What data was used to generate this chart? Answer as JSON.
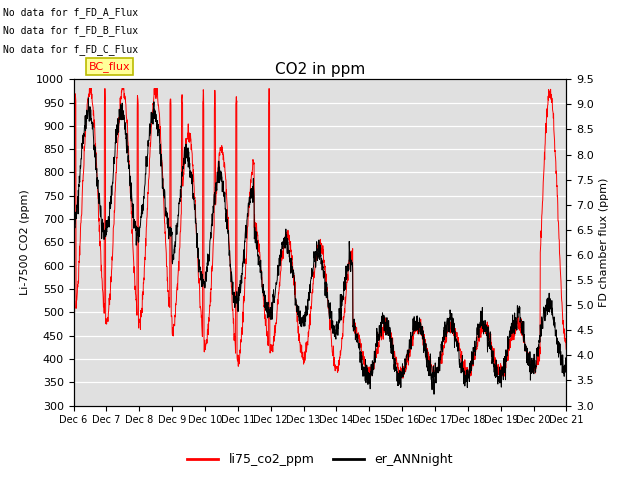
{
  "title": "CO2 in ppm",
  "ylabel_left": "Li-7500 CO2 (ppm)",
  "ylabel_right": "FD chamber flux (ppm)",
  "ylim_left": [
    300,
    1000
  ],
  "ylim_right": [
    3.0,
    9.5
  ],
  "yticks_left": [
    300,
    350,
    400,
    450,
    500,
    550,
    600,
    650,
    700,
    750,
    800,
    850,
    900,
    950,
    1000
  ],
  "yticks_right": [
    3.0,
    3.5,
    4.0,
    4.5,
    5.0,
    5.5,
    6.0,
    6.5,
    7.0,
    7.5,
    8.0,
    8.5,
    9.0,
    9.5
  ],
  "background_color": "#e0e0e0",
  "legend_labels": [
    "li75_co2_ppm",
    "er_ANNnight"
  ],
  "legend_colors": [
    "red",
    "black"
  ],
  "annotations": [
    "No data for f_FD_A_Flux",
    "No data for f_FD_B_Flux",
    "No data for f_FD_C_Flux"
  ],
  "legend_box_label": "BC_flux",
  "legend_box_color": "#ffff99",
  "legend_box_edge": "#bbbb00"
}
